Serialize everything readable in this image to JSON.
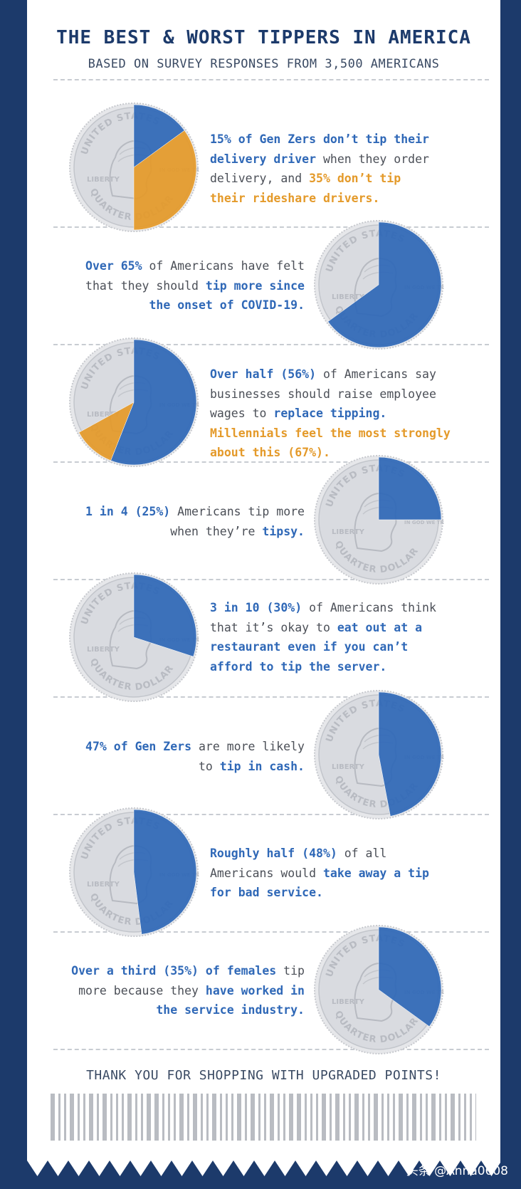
{
  "header": {
    "title": "THE BEST & WORST TIPPERS IN AMERICA",
    "subtitle": "BASED ON SURVEY RESPONSES FROM 3,500 AMERICANS"
  },
  "footer": "THANK YOU FOR SHOPPING WITH UPGRADED POINTS!",
  "watermark": "头条 @Anna0608",
  "colors": {
    "background": "#1c3a6b",
    "blue": "#2f68b7",
    "orange": "#e49a2a",
    "coin": "#d9dbe0"
  },
  "coin_text": {
    "top": "UNITED STATES",
    "left": "LIBERTY",
    "bottom": "QUARTER DOLLAR",
    "right": "IN GOD WE TRUST"
  },
  "stats": [
    {
      "parts": [
        {
          "text": "15% of Gen Zers don’t tip their delivery driver",
          "style": "b"
        },
        {
          "text": " when they order delivery, and ",
          "style": "n"
        },
        {
          "text": "35% don’t tip their rideshare drivers.",
          "style": "o"
        }
      ]
    },
    {
      "parts": [
        {
          "text": "Over 65%",
          "style": "b"
        },
        {
          "text": " of Americans have felt that they should ",
          "style": "n"
        },
        {
          "text": "tip more since the onset of COVID-19.",
          "style": "b"
        }
      ]
    },
    {
      "parts": [
        {
          "text": "Over half (56%)",
          "style": "b"
        },
        {
          "text": " of Americans say businesses should raise employee wages to ",
          "style": "n"
        },
        {
          "text": "replace tipping.",
          "style": "b"
        },
        {
          "text": " ",
          "style": "n"
        },
        {
          "text": "Millennials feel the most strongly about this (67%).",
          "style": "o"
        }
      ]
    },
    {
      "parts": [
        {
          "text": "1 in 4 (25%)",
          "style": "b"
        },
        {
          "text": " Americans tip more when they’re ",
          "style": "n"
        },
        {
          "text": "tipsy.",
          "style": "b"
        }
      ]
    },
    {
      "parts": [
        {
          "text": "3 in 10 (30%)",
          "style": "b"
        },
        {
          "text": " of Americans think that it’s okay to ",
          "style": "n"
        },
        {
          "text": "eat out at a restaurant even if you can’t afford to tip the server.",
          "style": "b"
        }
      ]
    },
    {
      "parts": [
        {
          "text": "47% of Gen Zers",
          "style": "b"
        },
        {
          "text": " are more likely to ",
          "style": "n"
        },
        {
          "text": "tip in cash.",
          "style": "b"
        }
      ]
    },
    {
      "parts": [
        {
          "text": "Roughly half (48%)",
          "style": "b"
        },
        {
          "text": " of all Americans would ",
          "style": "n"
        },
        {
          "text": "take away a tip for bad service.",
          "style": "b"
        }
      ]
    },
    {
      "parts": [
        {
          "text": "Over a third (35%) of females",
          "style": "b"
        },
        {
          "text": " tip more because they ",
          "style": "n"
        },
        {
          "text": "have worked in the service industry.",
          "style": "b"
        }
      ]
    }
  ],
  "chart_data": {
    "type": "pie",
    "series": [
      {
        "values": [
          15,
          35
        ],
        "colors": [
          "#2f68b7",
          "#e49a2a"
        ]
      },
      {
        "values": [
          65
        ],
        "colors": [
          "#2f68b7"
        ]
      },
      {
        "values": [
          56,
          11
        ],
        "colors": [
          "#2f68b7",
          "#e49a2a"
        ]
      },
      {
        "values": [
          25
        ],
        "colors": [
          "#2f68b7"
        ]
      },
      {
        "values": [
          30
        ],
        "colors": [
          "#2f68b7"
        ]
      },
      {
        "values": [
          47
        ],
        "colors": [
          "#2f68b7"
        ]
      },
      {
        "values": [
          48
        ],
        "colors": [
          "#2f68b7"
        ]
      },
      {
        "values": [
          35
        ],
        "colors": [
          "#2f68b7"
        ]
      }
    ]
  }
}
